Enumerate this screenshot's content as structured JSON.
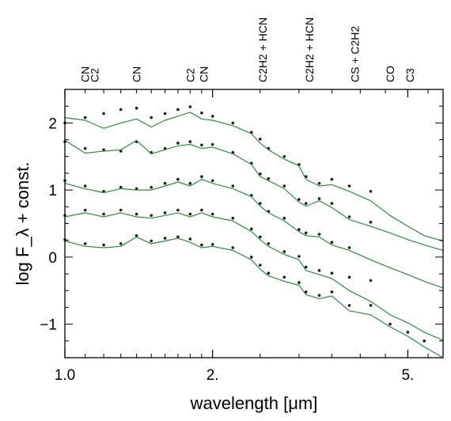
{
  "chart_data": {
    "type": "line",
    "xlabel": "wavelength [μm]",
    "ylabel": "log F_λ + const.",
    "x_scale": "log",
    "xlim": [
      1.0,
      5.9
    ],
    "ylim": [
      -1.5,
      2.5
    ],
    "grid": false,
    "x_ticks": [
      {
        "value": 1.0,
        "label": "1.0"
      },
      {
        "value": 2.0,
        "label": "2."
      },
      {
        "value": 5.0,
        "label": "5."
      }
    ],
    "y_ticks": [
      {
        "value": 2,
        "label": "2"
      },
      {
        "value": 1,
        "label": "1"
      },
      {
        "value": 0,
        "label": "0"
      },
      {
        "value": -1,
        "label": "−1"
      }
    ],
    "features": [
      {
        "x": 1.1,
        "label": "CN"
      },
      {
        "x": 1.15,
        "label": "C2"
      },
      {
        "x": 1.4,
        "label": "CN"
      },
      {
        "x": 1.8,
        "label": "C2"
      },
      {
        "x": 1.92,
        "label": "CN"
      },
      {
        "x": 2.53,
        "label": "C2H2 + HCN"
      },
      {
        "x": 3.15,
        "label": "C2H2 + HCN"
      },
      {
        "x": 3.9,
        "label": "CS + C2H2"
      },
      {
        "x": 4.6,
        "label": "CO"
      },
      {
        "x": 5.05,
        "label": "C3"
      }
    ],
    "series": [
      {
        "kind": "observed",
        "color": "#1a1a1a",
        "offset": 2.0,
        "x": [
          1.0,
          1.1,
          1.2,
          1.3,
          1.4,
          1.5,
          1.6,
          1.7,
          1.8,
          1.9,
          2.0,
          2.2,
          2.4,
          2.5,
          2.6,
          2.8,
          3.0,
          3.1,
          3.3,
          3.5,
          3.8,
          4.2
        ],
        "y": [
          2.0,
          2.08,
          2.14,
          2.2,
          2.22,
          2.08,
          2.14,
          2.2,
          2.24,
          2.15,
          2.1,
          2.0,
          1.86,
          1.76,
          1.62,
          1.5,
          1.38,
          1.2,
          1.1,
          1.16,
          1.06,
          0.98
        ]
      },
      {
        "kind": "observed",
        "color": "#1a1a1a",
        "offset": 1.5,
        "x": [
          1.0,
          1.1,
          1.2,
          1.3,
          1.4,
          1.5,
          1.6,
          1.7,
          1.8,
          1.9,
          2.0,
          2.2,
          2.4,
          2.5,
          2.6,
          2.8,
          3.0,
          3.1,
          3.3,
          3.5,
          3.8,
          4.2
        ],
        "y": [
          1.72,
          1.62,
          1.6,
          1.58,
          1.72,
          1.56,
          1.62,
          1.7,
          1.72,
          1.67,
          1.68,
          1.56,
          1.4,
          1.24,
          1.17,
          1.06,
          0.86,
          0.8,
          0.87,
          0.8,
          0.6,
          0.52
        ]
      },
      {
        "kind": "observed",
        "color": "#1a1a1a",
        "offset": 1.0,
        "x": [
          1.0,
          1.1,
          1.2,
          1.3,
          1.4,
          1.5,
          1.6,
          1.7,
          1.8,
          1.9,
          2.0,
          2.2,
          2.4,
          2.5,
          2.6,
          2.8,
          3.0,
          3.1,
          3.3,
          3.5,
          3.8
        ],
        "y": [
          1.14,
          1.06,
          0.98,
          1.04,
          1.02,
          1.04,
          1.1,
          1.16,
          1.1,
          1.2,
          1.14,
          1.06,
          0.92,
          0.8,
          0.68,
          0.58,
          0.41,
          0.36,
          0.34,
          0.22,
          0.14
        ]
      },
      {
        "kind": "observed",
        "color": "#1a1a1a",
        "offset": 0.5,
        "x": [
          1.0,
          1.1,
          1.2,
          1.3,
          1.4,
          1.5,
          1.6,
          1.7,
          1.8,
          1.9,
          2.0,
          2.2,
          2.4,
          2.5,
          2.6,
          2.8,
          3.0,
          3.1,
          3.3,
          3.5,
          3.8,
          4.2
        ],
        "y": [
          0.62,
          0.7,
          0.64,
          0.7,
          0.64,
          0.62,
          0.66,
          0.7,
          0.64,
          0.7,
          0.64,
          0.58,
          0.42,
          0.3,
          0.2,
          0.08,
          0.01,
          -0.15,
          -0.2,
          -0.24,
          -0.3,
          -0.35
        ]
      },
      {
        "kind": "observed",
        "color": "#1a1a1a",
        "offset": 0.0,
        "x": [
          1.0,
          1.1,
          1.2,
          1.3,
          1.4,
          1.5,
          1.6,
          1.7,
          1.8,
          1.9,
          2.0,
          2.2,
          2.4,
          2.5,
          2.6,
          2.8,
          3.0,
          3.1,
          3.3,
          3.5,
          3.8,
          4.2,
          4.6,
          5.0,
          5.4
        ],
        "y": [
          0.26,
          0.2,
          0.18,
          0.2,
          0.32,
          0.24,
          0.28,
          0.3,
          0.27,
          0.18,
          0.19,
          0.14,
          0.0,
          -0.12,
          -0.24,
          -0.3,
          -0.38,
          -0.52,
          -0.57,
          -0.52,
          -0.72,
          -0.72,
          -1.0,
          -1.12,
          -1.25
        ]
      },
      {
        "kind": "model",
        "color": "#2e8b3c",
        "offset": 2.0,
        "x": [
          1.0,
          1.1,
          1.2,
          1.3,
          1.4,
          1.5,
          1.6,
          1.7,
          1.8,
          1.9,
          2.0,
          2.2,
          2.4,
          2.5,
          2.6,
          2.8,
          3.0,
          3.1,
          3.3,
          3.5,
          3.8,
          4.2,
          4.6,
          5.0,
          5.4,
          5.9
        ],
        "y": [
          2.08,
          2.04,
          1.92,
          2.0,
          2.06,
          1.94,
          2.04,
          2.1,
          2.16,
          2.06,
          2.04,
          1.96,
          1.84,
          1.7,
          1.6,
          1.46,
          1.36,
          1.16,
          1.06,
          1.08,
          0.98,
          0.84,
          0.62,
          0.46,
          0.32,
          0.24
        ]
      },
      {
        "kind": "model",
        "color": "#2e8b3c",
        "offset": 1.5,
        "x": [
          1.0,
          1.1,
          1.2,
          1.3,
          1.4,
          1.5,
          1.6,
          1.7,
          1.8,
          1.9,
          2.0,
          2.2,
          2.4,
          2.5,
          2.6,
          2.8,
          3.0,
          3.1,
          3.3,
          3.5,
          3.8,
          4.2,
          4.6,
          5.0,
          5.4,
          5.9
        ],
        "y": [
          1.74,
          1.55,
          1.58,
          1.6,
          1.74,
          1.54,
          1.6,
          1.66,
          1.68,
          1.62,
          1.64,
          1.54,
          1.38,
          1.2,
          1.14,
          1.02,
          0.82,
          0.76,
          0.84,
          0.74,
          0.56,
          0.46,
          0.36,
          0.26,
          0.18,
          0.1
        ]
      },
      {
        "kind": "model",
        "color": "#2e8b3c",
        "offset": 1.0,
        "x": [
          1.0,
          1.1,
          1.2,
          1.3,
          1.4,
          1.5,
          1.6,
          1.7,
          1.8,
          1.9,
          2.0,
          2.2,
          2.4,
          2.5,
          2.6,
          2.8,
          3.0,
          3.1,
          3.3,
          3.5,
          3.8,
          4.2,
          4.6,
          5.0,
          5.4,
          5.9
        ],
        "y": [
          1.1,
          1.02,
          0.96,
          1.02,
          1.0,
          1.0,
          1.06,
          1.12,
          1.06,
          1.16,
          1.1,
          1.02,
          0.9,
          0.76,
          0.66,
          0.54,
          0.38,
          0.32,
          0.3,
          0.18,
          0.1,
          -0.04,
          -0.16,
          -0.26,
          -0.36,
          -0.46
        ]
      },
      {
        "kind": "model",
        "color": "#2e8b3c",
        "offset": 0.5,
        "x": [
          1.0,
          1.1,
          1.2,
          1.3,
          1.4,
          1.5,
          1.6,
          1.7,
          1.8,
          1.9,
          2.0,
          2.2,
          2.4,
          2.5,
          2.6,
          2.8,
          3.0,
          3.1,
          3.3,
          3.5,
          3.8,
          4.2,
          4.6,
          5.0,
          5.4,
          5.9
        ],
        "y": [
          0.6,
          0.66,
          0.6,
          0.66,
          0.6,
          0.58,
          0.62,
          0.66,
          0.6,
          0.66,
          0.6,
          0.54,
          0.38,
          0.26,
          0.16,
          0.04,
          -0.04,
          -0.2,
          -0.26,
          -0.32,
          -0.5,
          -0.66,
          -0.86,
          -0.98,
          -1.12,
          -1.24
        ]
      },
      {
        "kind": "model",
        "color": "#2e8b3c",
        "offset": 0.0,
        "x": [
          1.0,
          1.1,
          1.2,
          1.3,
          1.4,
          1.5,
          1.6,
          1.7,
          1.8,
          1.9,
          2.0,
          2.2,
          2.4,
          2.5,
          2.6,
          2.8,
          3.0,
          3.1,
          3.3,
          3.5,
          3.8,
          4.2,
          4.6,
          5.0,
          5.4,
          5.9
        ],
        "y": [
          0.24,
          0.16,
          0.14,
          0.16,
          0.3,
          0.2,
          0.24,
          0.28,
          0.22,
          0.14,
          0.16,
          0.1,
          -0.04,
          -0.18,
          -0.28,
          -0.36,
          -0.42,
          -0.56,
          -0.62,
          -0.58,
          -0.8,
          -0.86,
          -1.04,
          -1.18,
          -1.34,
          -1.5
        ]
      }
    ]
  }
}
